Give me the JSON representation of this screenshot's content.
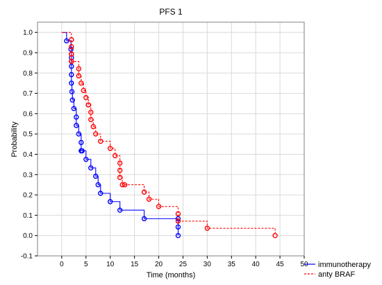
{
  "chart_data": {
    "type": "line",
    "title": "PFS 1",
    "xlabel": "Time (months)",
    "ylabel": "Probability",
    "xlim": [
      -5,
      50
    ],
    "ylim": [
      -0.1,
      1.05
    ],
    "x_ticks": [
      0,
      5,
      10,
      15,
      20,
      25,
      30,
      35,
      40,
      45,
      50
    ],
    "y_ticks": [
      -0.1,
      0.0,
      0.1,
      0.2,
      0.3,
      0.4,
      0.5,
      0.6,
      0.7,
      0.8,
      0.9,
      1.0
    ],
    "grid": true,
    "legend_position": "bottom-right",
    "series": [
      {
        "name": "immunotherapy",
        "color": "#0000ff",
        "style": "solid-step",
        "x": [
          0,
          1,
          1.9,
          2,
          2,
          2,
          2,
          2.1,
          2.2,
          2.5,
          3,
          3,
          3.5,
          4,
          4,
          4.2,
          5,
          6,
          7,
          7.5,
          8,
          10,
          12,
          17,
          24,
          24,
          24
        ],
        "y": [
          1.0,
          0.958,
          0.917,
          0.875,
          0.833,
          0.792,
          0.75,
          0.708,
          0.667,
          0.625,
          0.583,
          0.542,
          0.5,
          0.458,
          0.417,
          0.417,
          0.375,
          0.333,
          0.292,
          0.25,
          0.208,
          0.167,
          0.125,
          0.083,
          0.083,
          0.042,
          0.0
        ]
      },
      {
        "name": "anty BRAF",
        "color": "#ff0000",
        "style": "dashed-step",
        "x": [
          0,
          2,
          2,
          2,
          2,
          2,
          2,
          2,
          3.5,
          3.5,
          4,
          4.5,
          5,
          5.5,
          5.5,
          6,
          6,
          6.5,
          7,
          8,
          10,
          11,
          12,
          12,
          12,
          12.5,
          13,
          17,
          18,
          20,
          24,
          24,
          30,
          44
        ],
        "y": [
          1.0,
          0.964,
          0.929,
          0.893,
          0.893,
          0.857,
          0.857,
          0.857,
          0.821,
          0.786,
          0.75,
          0.714,
          0.679,
          0.643,
          0.643,
          0.607,
          0.571,
          0.536,
          0.5,
          0.464,
          0.429,
          0.393,
          0.357,
          0.321,
          0.286,
          0.25,
          0.25,
          0.214,
          0.179,
          0.143,
          0.107,
          0.071,
          0.036,
          0.0
        ]
      }
    ]
  },
  "colors": {
    "immunotherapy": "#0000ff",
    "anty_braf": "#ff0000",
    "grid": "#d9d9d9",
    "frame": "#7f7f7f"
  }
}
